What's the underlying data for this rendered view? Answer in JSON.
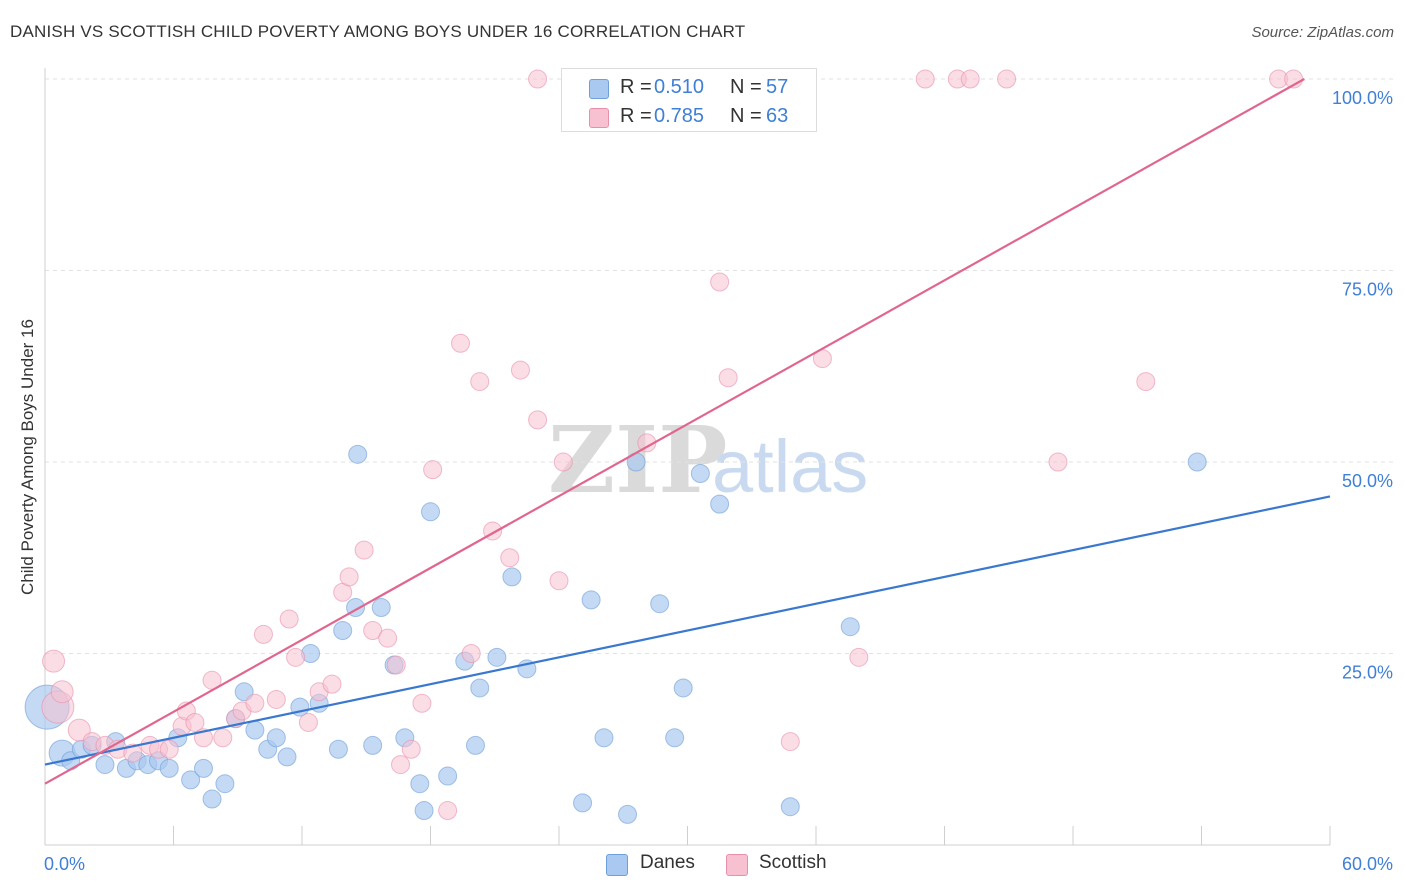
{
  "title": "DANISH VS SCOTTISH CHILD POVERTY AMONG BOYS UNDER 16 CORRELATION CHART",
  "source": "Source: ZipAtlas.com",
  "watermark": {
    "zip": "ZIP",
    "atlas": "atlas"
  },
  "legend_top": [
    {
      "r_label": "R =",
      "r_value": "0.510",
      "n_label": "N =",
      "n_value": "57",
      "color": "#a9c9f0",
      "border": "#6f9fd8"
    },
    {
      "r_label": "R =",
      "r_value": "0.785",
      "n_label": "N =",
      "n_value": "63",
      "color": "#f7c1d1",
      "border": "#e890aa"
    }
  ],
  "legend_bottom": [
    {
      "label": "Danes",
      "color": "#a9c9f0",
      "border": "#6f9fd8"
    },
    {
      "label": "Scottish",
      "color": "#f7c1d1",
      "border": "#e890aa"
    }
  ],
  "chart_data": {
    "type": "scatter",
    "title": "DANISH VS SCOTTISH CHILD POVERTY AMONG BOYS UNDER 16 CORRELATION CHART",
    "ylabel": "Child Poverty Among Boys Under 16",
    "xlabel": "",
    "xlim": [
      0,
      60
    ],
    "ylim": [
      0,
      100
    ],
    "x_tick_labels": [
      "0.0%",
      "60.0%"
    ],
    "y_tick_labels": [
      "25.0%",
      "50.0%",
      "75.0%",
      "100.0%"
    ],
    "y_ticks": [
      25,
      50,
      75,
      100
    ],
    "grid": true,
    "legend_position": "bottom-center",
    "series": [
      {
        "name": "Danes",
        "color": "#6f9fd8",
        "fill": "#a9c9f0",
        "line_color": "#3a78d0",
        "trend": [
          [
            0,
            10.5
          ],
          [
            60,
            45.5
          ]
        ],
        "points": [
          [
            0.1,
            18.0,
            22
          ],
          [
            0.8,
            12.0,
            13
          ],
          [
            1.2,
            11.0,
            9
          ],
          [
            1.7,
            12.5,
            9
          ],
          [
            2.2,
            13.0,
            9
          ],
          [
            2.8,
            10.5,
            9
          ],
          [
            3.3,
            13.5,
            9
          ],
          [
            3.8,
            10.0,
            9
          ],
          [
            4.3,
            11.0,
            9
          ],
          [
            4.8,
            10.5,
            9
          ],
          [
            5.3,
            11.0,
            9
          ],
          [
            5.8,
            10.0,
            9
          ],
          [
            6.2,
            14.0,
            9
          ],
          [
            6.8,
            8.5,
            9
          ],
          [
            7.4,
            10.0,
            9
          ],
          [
            7.8,
            6.0,
            9
          ],
          [
            8.4,
            8.0,
            9
          ],
          [
            8.9,
            16.5,
            9
          ],
          [
            9.3,
            20.0,
            9
          ],
          [
            9.8,
            15.0,
            9
          ],
          [
            10.4,
            12.5,
            9
          ],
          [
            10.8,
            14.0,
            9
          ],
          [
            11.3,
            11.5,
            9
          ],
          [
            11.9,
            18.0,
            9
          ],
          [
            12.4,
            25.0,
            9
          ],
          [
            12.8,
            18.5,
            9
          ],
          [
            13.7,
            12.5,
            9
          ],
          [
            13.9,
            28.0,
            9
          ],
          [
            14.5,
            31.0,
            9
          ],
          [
            14.6,
            51.0,
            9
          ],
          [
            15.3,
            13.0,
            9
          ],
          [
            15.7,
            31.0,
            9
          ],
          [
            16.3,
            23.5,
            9
          ],
          [
            16.8,
            14.0,
            9
          ],
          [
            17.5,
            8.0,
            9
          ],
          [
            17.7,
            4.5,
            9
          ],
          [
            18.0,
            43.5,
            9
          ],
          [
            18.8,
            9.0,
            9
          ],
          [
            19.6,
            24.0,
            9
          ],
          [
            20.1,
            13.0,
            9
          ],
          [
            20.3,
            20.5,
            9
          ],
          [
            21.1,
            24.5,
            9
          ],
          [
            21.8,
            35.0,
            9
          ],
          [
            22.5,
            23.0,
            9
          ],
          [
            25.1,
            5.5,
            9
          ],
          [
            25.5,
            32.0,
            9
          ],
          [
            26.1,
            14.0,
            9
          ],
          [
            27.2,
            4.0,
            9
          ],
          [
            27.6,
            50.0,
            9
          ],
          [
            28.7,
            31.5,
            9
          ],
          [
            29.4,
            14.0,
            9
          ],
          [
            29.8,
            20.5,
            9
          ],
          [
            30.6,
            48.5,
            9
          ],
          [
            31.5,
            44.5,
            9
          ],
          [
            34.8,
            5.0,
            9
          ],
          [
            37.6,
            28.5,
            9
          ],
          [
            53.8,
            50.0,
            9
          ]
        ]
      },
      {
        "name": "Scottish",
        "color": "#e890aa",
        "fill": "#f7c1d1",
        "line_color": "#e0668e",
        "trend": [
          [
            0,
            8.0
          ],
          [
            58.8,
            100.0
          ]
        ],
        "points": [
          [
            0.4,
            24.0,
            11
          ],
          [
            0.6,
            18.0,
            16
          ],
          [
            0.8,
            20.0,
            11
          ],
          [
            1.6,
            15.0,
            11
          ],
          [
            2.2,
            13.5,
            9
          ],
          [
            2.8,
            13.0,
            9
          ],
          [
            3.4,
            12.5,
            9
          ],
          [
            4.1,
            12.0,
            9
          ],
          [
            4.9,
            13.0,
            9
          ],
          [
            5.3,
            12.5,
            9
          ],
          [
            5.8,
            12.5,
            9
          ],
          [
            6.4,
            15.5,
            9
          ],
          [
            6.6,
            17.5,
            9
          ],
          [
            7.0,
            16.0,
            9
          ],
          [
            7.4,
            14.0,
            9
          ],
          [
            7.8,
            21.5,
            9
          ],
          [
            8.3,
            14.0,
            9
          ],
          [
            8.9,
            16.5,
            9
          ],
          [
            9.2,
            17.5,
            9
          ],
          [
            9.8,
            18.5,
            9
          ],
          [
            10.2,
            27.5,
            9
          ],
          [
            10.8,
            19.0,
            9
          ],
          [
            11.4,
            29.5,
            9
          ],
          [
            11.7,
            24.5,
            9
          ],
          [
            12.3,
            16.0,
            9
          ],
          [
            12.8,
            20.0,
            9
          ],
          [
            13.4,
            21.0,
            9
          ],
          [
            13.9,
            33.0,
            9
          ],
          [
            14.2,
            35.0,
            9
          ],
          [
            14.9,
            38.5,
            9
          ],
          [
            15.3,
            28.0,
            9
          ],
          [
            16.0,
            27.0,
            9
          ],
          [
            16.4,
            23.5,
            9
          ],
          [
            16.6,
            10.5,
            9
          ],
          [
            17.1,
            12.5,
            9
          ],
          [
            17.6,
            18.5,
            9
          ],
          [
            18.1,
            49.0,
            9
          ],
          [
            18.8,
            4.5,
            9
          ],
          [
            19.4,
            65.5,
            9
          ],
          [
            19.9,
            25.0,
            9
          ],
          [
            20.3,
            60.5,
            9
          ],
          [
            20.9,
            41.0,
            9
          ],
          [
            21.7,
            37.5,
            9
          ],
          [
            22.2,
            62.0,
            9
          ],
          [
            23.0,
            55.5,
            9
          ],
          [
            23.0,
            100.0,
            9
          ],
          [
            24.0,
            34.5,
            9
          ],
          [
            24.2,
            50.0,
            9
          ],
          [
            27.4,
            100.0,
            9
          ],
          [
            28.1,
            52.5,
            9
          ],
          [
            31.5,
            73.5,
            9
          ],
          [
            31.9,
            61.0,
            9
          ],
          [
            34.8,
            13.5,
            9
          ],
          [
            36.3,
            63.5,
            9
          ],
          [
            38.0,
            24.5,
            9
          ],
          [
            41.1,
            100.0,
            9
          ],
          [
            42.6,
            100.0,
            9
          ],
          [
            43.2,
            100.0,
            9
          ],
          [
            44.9,
            100.0,
            9
          ],
          [
            47.3,
            50.0,
            9
          ],
          [
            51.4,
            60.5,
            9
          ],
          [
            57.6,
            100.0,
            9
          ],
          [
            58.3,
            100.0,
            9
          ]
        ]
      }
    ]
  }
}
